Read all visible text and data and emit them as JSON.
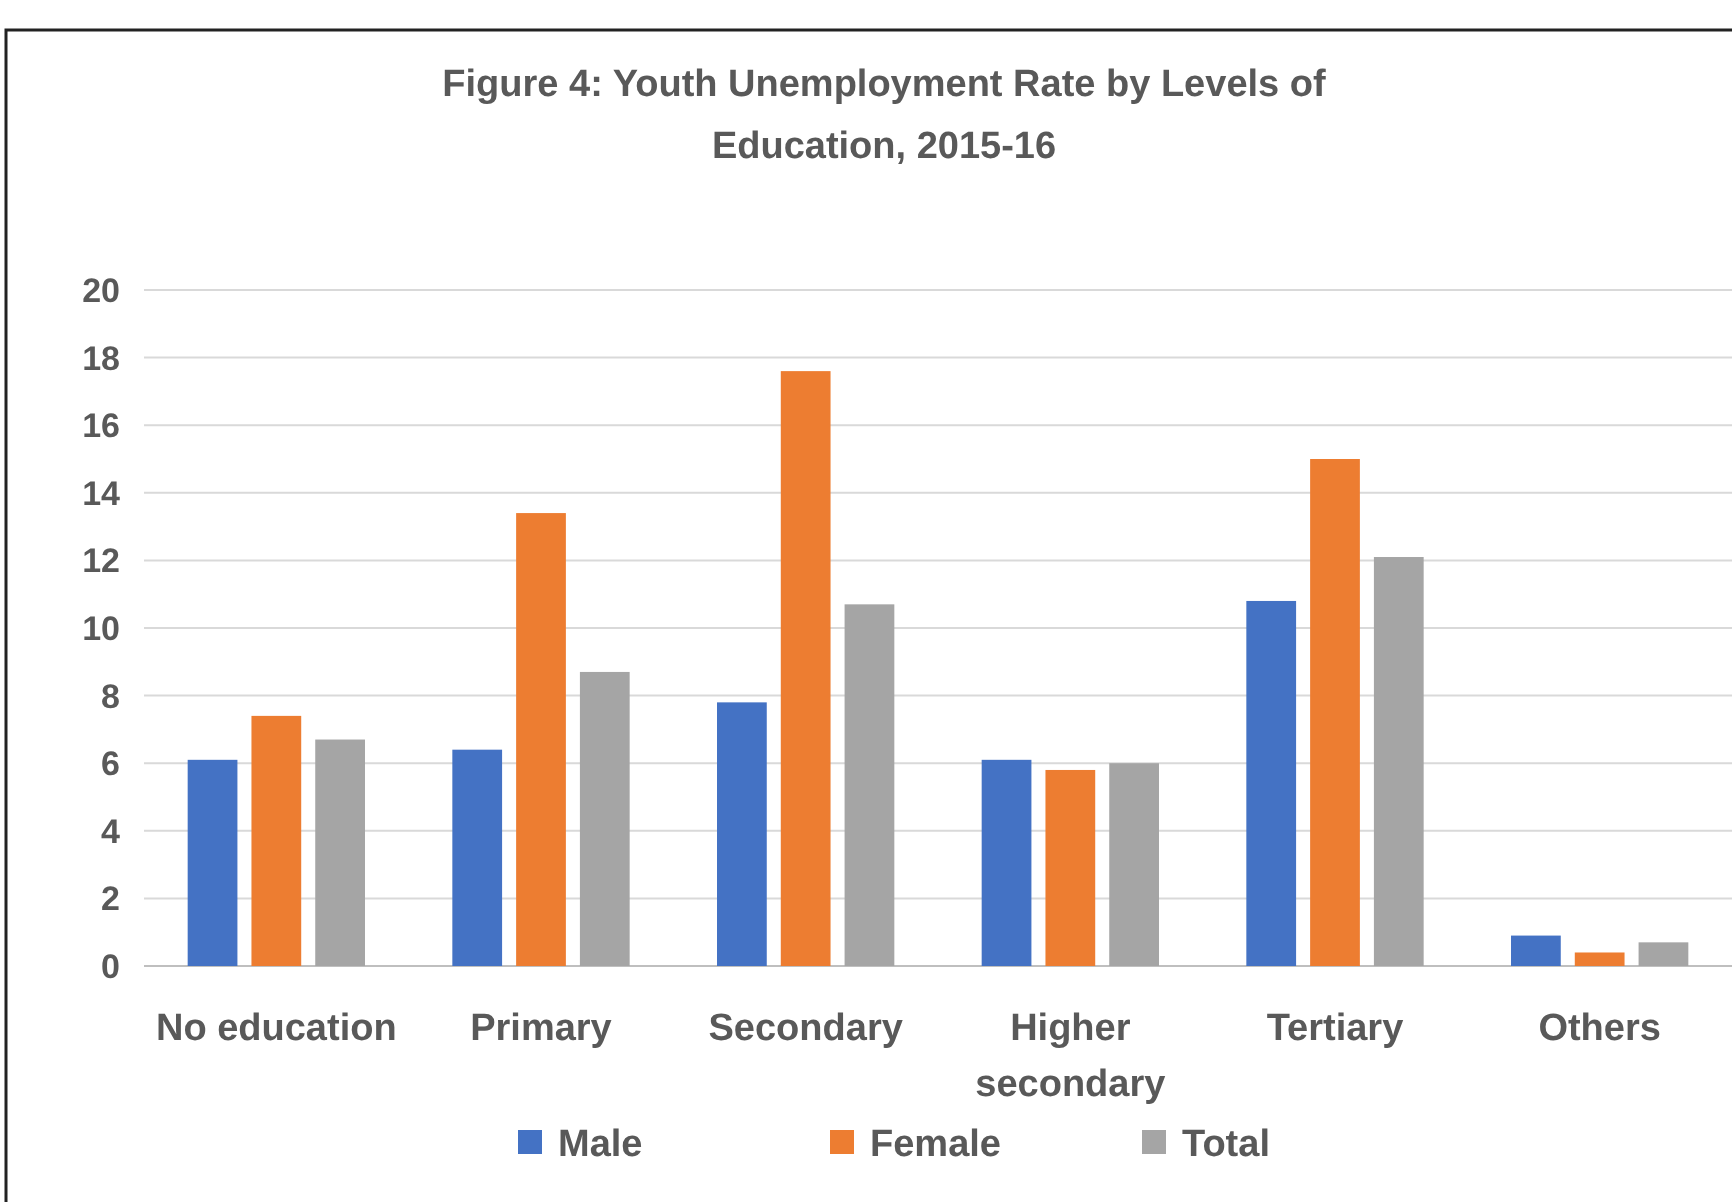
{
  "chart_data": {
    "type": "bar",
    "title": "Figure 4: Youth Unemployment Rate by Levels of Education, 2015-16",
    "categories": [
      "No education",
      "Primary",
      "Secondary",
      "Higher secondary",
      "Tertiary",
      "Others"
    ],
    "series": [
      {
        "name": "Male",
        "color": "#4472c4",
        "values": [
          6.1,
          6.4,
          7.8,
          6.1,
          10.8,
          0.9
        ]
      },
      {
        "name": "Female",
        "color": "#ed7d31",
        "values": [
          7.4,
          13.4,
          17.6,
          5.8,
          15.0,
          0.4
        ]
      },
      {
        "name": "Total",
        "color": "#a5a5a5",
        "values": [
          6.7,
          8.7,
          10.7,
          6.0,
          12.1,
          0.7
        ]
      }
    ],
    "ylim": [
      0,
      20
    ],
    "yticks": [
      0,
      2,
      4,
      6,
      8,
      10,
      12,
      14,
      16,
      18,
      20
    ],
    "grid": "y",
    "legend": "bottom"
  }
}
